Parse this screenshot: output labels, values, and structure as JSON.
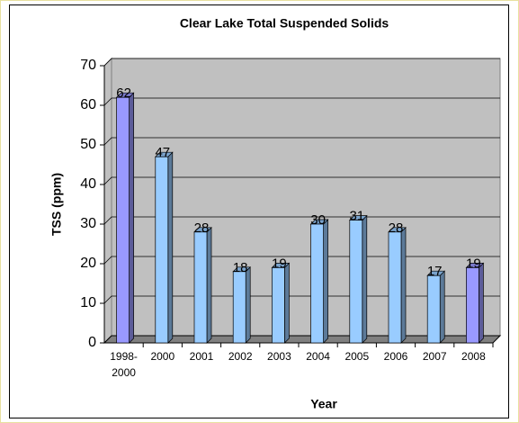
{
  "chart_data": {
    "type": "bar3d",
    "title": "Clear Lake Total Suspended Solids",
    "x_label": "Year",
    "y_label": "TSS (ppm)",
    "categories": [
      "1998-2000",
      "2000",
      "2001",
      "2002",
      "2003",
      "2004",
      "2005",
      "2006",
      "2007",
      "2008"
    ],
    "values": [
      62,
      47,
      28,
      18,
      19,
      30,
      31,
      28,
      17,
      19
    ],
    "colors": [
      "#9999ff",
      "#99ccff",
      "#99ccff",
      "#99ccff",
      "#99ccff",
      "#99ccff",
      "#99ccff",
      "#99ccff",
      "#99ccff",
      "#9999ff"
    ],
    "ylim": [
      0,
      70
    ],
    "yticks": [
      0,
      10,
      20,
      30,
      40,
      50,
      60,
      70
    ],
    "grid": true
  }
}
